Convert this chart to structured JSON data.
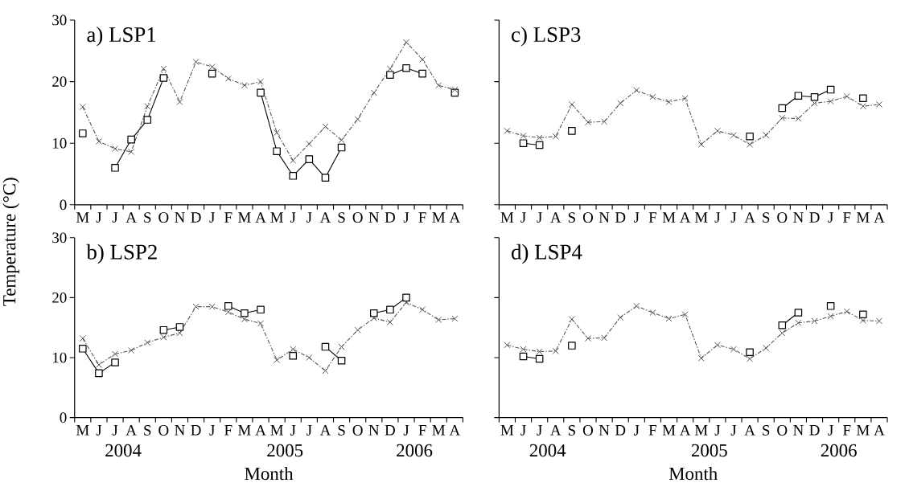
{
  "chart_data": [
    {
      "type": "line",
      "title": "a) LSP1",
      "ylabel": "Temperature (°C)",
      "categories": [
        "M",
        "J",
        "J",
        "A",
        "S",
        "O",
        "N",
        "D",
        "J",
        "F",
        "M",
        "A",
        "M",
        "J",
        "J",
        "A",
        "S",
        "O",
        "N",
        "D",
        "J",
        "F",
        "M",
        "A"
      ],
      "series": [
        {
          "color": "#000000",
          "marker": "square",
          "line_style": "solid",
          "values": [
            11.6,
            null,
            6.0,
            10.6,
            13.8,
            20.6,
            null,
            null,
            21.3,
            null,
            null,
            18.2,
            8.7,
            4.7,
            7.4,
            4.4,
            9.3,
            null,
            null,
            21.1,
            22.2,
            21.3,
            null,
            18.2
          ]
        },
        {
          "color": "#555555",
          "marker": "cross",
          "line_style": "dashed",
          "values": [
            15.9,
            10.3,
            9.1,
            8.6,
            16.0,
            22.1,
            16.7,
            23.2,
            22.4,
            20.5,
            19.4,
            20.0,
            11.7,
            7.2,
            9.9,
            12.7,
            10.5,
            13.9,
            18.2,
            22.1,
            26.4,
            23.6,
            19.4,
            18.7
          ]
        }
      ],
      "ylim": [
        0,
        30
      ],
      "yticks": [
        0,
        10,
        20,
        30
      ],
      "grid": false
    },
    {
      "type": "line",
      "title": "c) LSP3",
      "tick_labels": "x",
      "categories": [
        "M",
        "J",
        "J",
        "A",
        "S",
        "O",
        "N",
        "D",
        "J",
        "F",
        "M",
        "A",
        "M",
        "J",
        "J",
        "A",
        "S",
        "O",
        "N",
        "D",
        "J",
        "F",
        "M",
        "A"
      ],
      "series": [
        {
          "color": "#000000",
          "marker": "square",
          "line_style": "solid",
          "values": [
            null,
            10.0,
            9.7,
            null,
            12.0,
            null,
            null,
            null,
            null,
            null,
            null,
            null,
            null,
            null,
            null,
            11.1,
            null,
            15.7,
            17.7,
            17.5,
            18.7,
            null,
            17.3,
            null
          ]
        },
        {
          "color": "#555555",
          "marker": "cross",
          "line_style": "dashed",
          "values": [
            12.0,
            11.2,
            10.9,
            11.1,
            16.3,
            13.4,
            13.5,
            16.5,
            18.6,
            17.5,
            16.7,
            17.3,
            9.8,
            12.0,
            11.3,
            9.8,
            11.3,
            14.1,
            14.0,
            16.5,
            16.8,
            17.6,
            16.0,
            16.3
          ]
        }
      ],
      "ylim": [
        0,
        30
      ],
      "yticks": [
        0,
        10,
        20,
        30
      ],
      "grid": false
    },
    {
      "type": "line",
      "title": "b) LSP2",
      "xlabel": "Month",
      "annotations": [
        "2004",
        "2005",
        "2006"
      ],
      "categories": [
        "M",
        "J",
        "J",
        "A",
        "S",
        "O",
        "N",
        "D",
        "J",
        "F",
        "M",
        "A",
        "M",
        "J",
        "J",
        "A",
        "S",
        "O",
        "N",
        "D",
        "J",
        "F",
        "M",
        "A"
      ],
      "series": [
        {
          "color": "#000000",
          "marker": "square",
          "line_style": "solid",
          "values": [
            11.5,
            7.4,
            9.2,
            null,
            null,
            14.6,
            15.1,
            null,
            null,
            18.6,
            17.4,
            18.0,
            null,
            10.3,
            null,
            11.8,
            9.5,
            null,
            17.4,
            18.0,
            20.0,
            null,
            null,
            null
          ]
        },
        {
          "color": "#555555",
          "marker": "cross",
          "line_style": "dashed",
          "values": [
            13.2,
            8.8,
            10.6,
            11.2,
            12.5,
            13.4,
            14.1,
            18.5,
            18.5,
            17.6,
            16.4,
            15.7,
            9.6,
            11.4,
            10.0,
            7.8,
            11.8,
            14.6,
            16.6,
            15.9,
            19.2,
            18.0,
            16.3,
            16.5
          ]
        }
      ],
      "ylim": [
        0,
        30
      ],
      "yticks": [
        0,
        10,
        20,
        30
      ],
      "grid": false
    },
    {
      "type": "line",
      "title": "d) LSP4",
      "xlabel": "Month",
      "annotations": [
        "2004",
        "2005",
        "2006"
      ],
      "tick_labels": "x",
      "categories": [
        "M",
        "J",
        "J",
        "A",
        "S",
        "O",
        "N",
        "D",
        "J",
        "F",
        "M",
        "A",
        "M",
        "J",
        "J",
        "A",
        "S",
        "O",
        "N",
        "D",
        "J",
        "F",
        "M",
        "A"
      ],
      "series": [
        {
          "color": "#000000",
          "marker": "square",
          "line_style": "solid",
          "values": [
            null,
            10.2,
            9.8,
            null,
            12.0,
            null,
            null,
            null,
            null,
            null,
            null,
            null,
            null,
            null,
            null,
            10.9,
            null,
            15.4,
            17.5,
            null,
            18.6,
            null,
            17.2,
            null
          ]
        },
        {
          "color": "#555555",
          "marker": "cross",
          "line_style": "dashed",
          "values": [
            12.1,
            11.4,
            11.0,
            11.1,
            16.4,
            13.2,
            13.3,
            16.7,
            18.6,
            17.5,
            16.5,
            17.2,
            9.9,
            12.1,
            11.4,
            9.8,
            11.6,
            14.1,
            15.8,
            16.1,
            16.9,
            17.7,
            16.2,
            16.1
          ]
        }
      ],
      "ylim": [
        0,
        30
      ],
      "yticks": [
        0,
        10,
        20,
        30
      ],
      "grid": false
    }
  ]
}
